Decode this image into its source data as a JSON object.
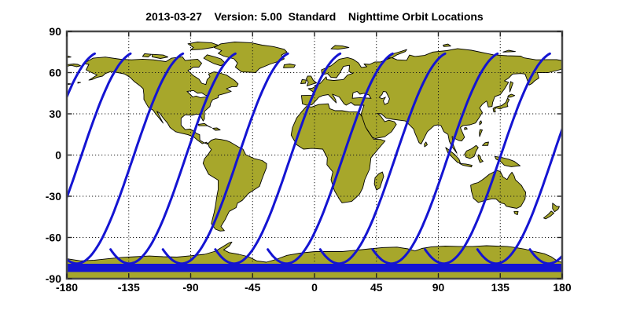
{
  "title": "2013-03-27    Version: 5.00  Standard    Nighttime Orbit Locations",
  "axes": {
    "x_tick_labels": [
      "-180",
      "-135",
      "-90",
      "-45",
      "0",
      "45",
      "90",
      "135",
      "180"
    ],
    "y_tick_labels": [
      "90",
      "60",
      "30",
      "0",
      "-30",
      "-60",
      "-90"
    ]
  },
  "chart_data": {
    "type": "line",
    "title": "2013-03-27    Version: 5.00  Standard    Nighttime Orbit Locations",
    "projection": "equirectangular world map",
    "xlim": [
      -180,
      180
    ],
    "ylim": [
      -90,
      90
    ],
    "x_ticks": [
      -180,
      -135,
      -90,
      -45,
      0,
      45,
      90,
      135,
      180
    ],
    "y_ticks": [
      90,
      60,
      30,
      0,
      -30,
      -60,
      -90
    ],
    "grid": "dotted lines at major ticks",
    "legend": "none",
    "series": [
      {
        "name": "nighttime satellite orbit ground tracks",
        "equator_crossing_lons": [
          -196,
          -170,
          -131.9,
          -93.8,
          -55.7,
          -17.6,
          20.5,
          58.6,
          96.7,
          134.8,
          172.9,
          211
        ],
        "track_model": {
          "lat_offset_deg": -2,
          "lat_amplitude_deg": 77,
          "lon_deg_per_radian": 26,
          "theta_start_deg": -120,
          "theta_end_deg": 80
        },
        "north_tip_lat_deg": 74,
        "south_apex_lat_deg": -79
      }
    ],
    "south_convergence_band_lat": [
      -80,
      -84.3
    ],
    "colors": {
      "track": "#1414d2",
      "land": "#a7a72b",
      "coastline": "#000000",
      "grid": "#1a1a1a",
      "frame": "#484848",
      "background": "#ffffff",
      "text": "#000000"
    }
  }
}
